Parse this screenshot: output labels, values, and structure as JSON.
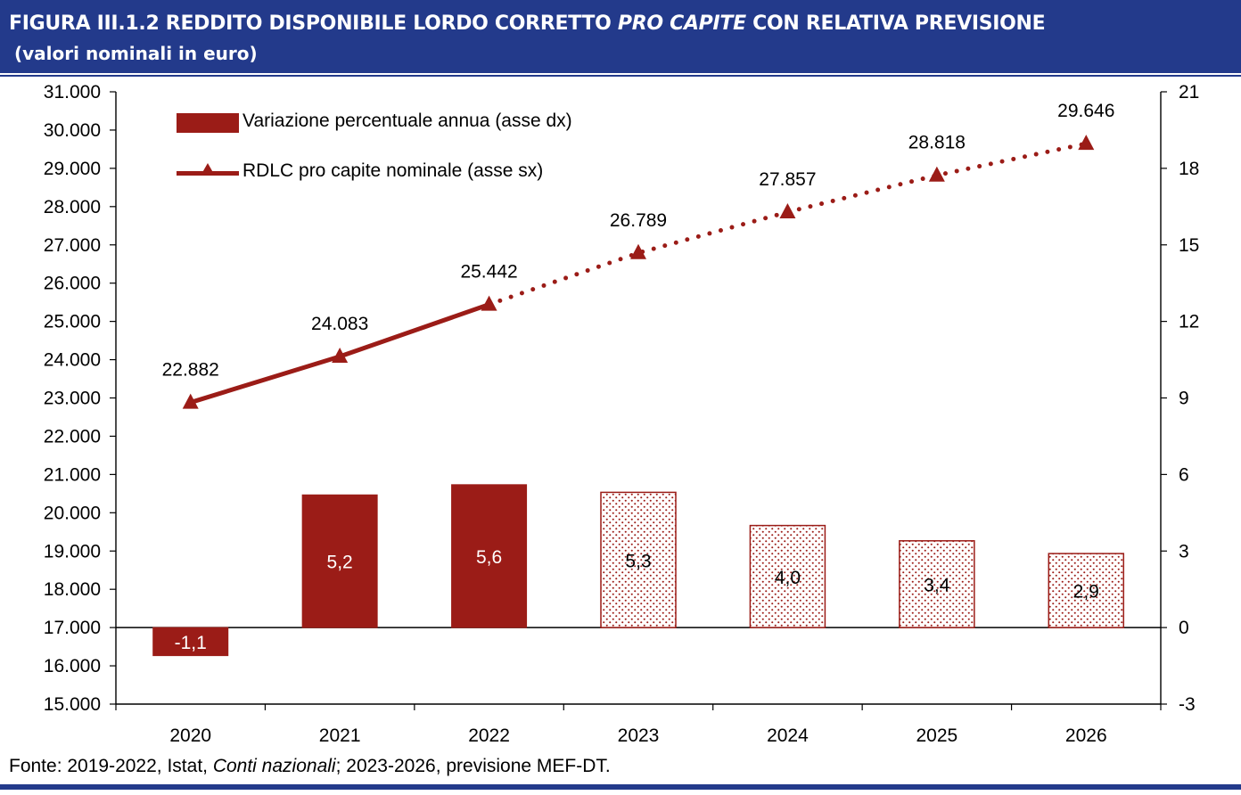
{
  "header": {
    "title_prefix": "FIGURA III.1.2 REDDITO DISPONIBILE LORDO CORRETTO ",
    "title_italic": "PRO CAPITE",
    "title_suffix": " CON RELATIVA PREVISIONE",
    "subtitle": "(valori nominali in euro)"
  },
  "source": {
    "prefix": "Fonte: 2019-2022, Istat, ",
    "italic": "Conti nazionali",
    "suffix": "; 2023-2026, previsione MEF-DT."
  },
  "legend": {
    "bar_label": "Variazione percentuale annua (asse dx)",
    "line_label": "RDLC pro capite nominale (asse sx)"
  },
  "colors": {
    "bar": "#9b1c17",
    "line": "#9b1c17",
    "header_bg": "#233a8b",
    "forecast_fill_dot": "#9b1c17"
  },
  "chart_data": {
    "type": "bar",
    "categories": [
      "2020",
      "2021",
      "2022",
      "2023",
      "2024",
      "2025",
      "2026"
    ],
    "forecast_from": "2023",
    "series": [
      {
        "name": "Variazione percentuale annua (asse dx)",
        "type": "bar",
        "axis": "right",
        "values": [
          -1.1,
          5.2,
          5.6,
          5.3,
          4.0,
          3.4,
          2.9
        ],
        "labels": [
          "-1,1",
          "5,2",
          "5,6",
          "5,3",
          "4,0",
          "3,4",
          "2,9"
        ]
      },
      {
        "name": "RDLC pro capite nominale (asse sx)",
        "type": "line",
        "axis": "left",
        "marker": "triangle",
        "values": [
          22882,
          24083,
          25442,
          26789,
          27857,
          28818,
          29646
        ],
        "labels": [
          "22.882",
          "24.083",
          "25.442",
          "26.789",
          "27.857",
          "28.818",
          "29.646"
        ]
      }
    ],
    "y_left": {
      "min": 15000,
      "max": 31000,
      "step": 1000,
      "ticks": [
        "15.000",
        "16.000",
        "17.000",
        "18.000",
        "19.000",
        "20.000",
        "21.000",
        "22.000",
        "23.000",
        "24.000",
        "25.000",
        "26.000",
        "27.000",
        "28.000",
        "29.000",
        "30.000",
        "31.000"
      ]
    },
    "y_right": {
      "min": -3,
      "max": 21,
      "step": 3,
      "ticks": [
        "-3",
        "0",
        "3",
        "6",
        "9",
        "12",
        "15",
        "18",
        "21"
      ]
    },
    "grid": false,
    "legend_position": "top-left"
  }
}
